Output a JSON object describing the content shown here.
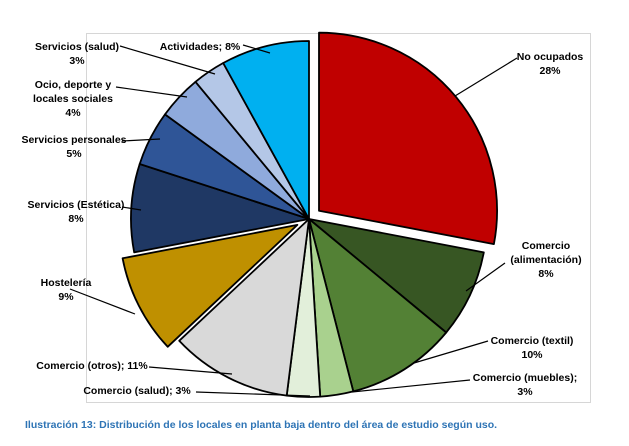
{
  "figure": {
    "caption": "Ilustración 13: Distribución de los locales en planta baja dentro del área de estudio según uso.",
    "caption_color": "#2E74B5",
    "plot_border_color": "#D6D6D6"
  },
  "chart_data": {
    "type": "pie",
    "title": "Distribución de los locales en planta baja dentro del área de estudio según uso",
    "units": "%",
    "direction": "clockwise",
    "start_angle_deg": 0,
    "total": 100,
    "legend": "none",
    "slices": [
      {
        "label": "No ocupados",
        "value": 28,
        "color": "#C00000",
        "exploded": true,
        "label_lines": [
          "No ocupados",
          "28%"
        ]
      },
      {
        "label": "Comercio (alimentación)",
        "value": 8,
        "color": "#375623",
        "exploded": false,
        "label_lines": [
          "Comercio",
          "(alimentación)",
          "8%"
        ]
      },
      {
        "label": "Comercio (textil)",
        "value": 10,
        "color": "#538135",
        "exploded": false,
        "label_lines": [
          "Comercio (textil)",
          "10%"
        ]
      },
      {
        "label": "Comercio (muebles)",
        "value": 3,
        "color": "#A9D18E",
        "exploded": false,
        "label_lines": [
          "Comercio (muebles);",
          "3%"
        ]
      },
      {
        "label": "Comercio (salud)",
        "value": 3,
        "color": "#E2EFDA",
        "exploded": false,
        "label_lines": [
          "Comercio (salud); 3%"
        ]
      },
      {
        "label": "Comercio (otros)",
        "value": 11,
        "color": "#D9D9D9",
        "exploded": false,
        "label_lines": [
          "Comercio (otros); 11%"
        ]
      },
      {
        "label": "Hostelería",
        "value": 9,
        "color": "#BF9000",
        "exploded": true,
        "label_lines": [
          "Hostelería",
          "9%"
        ]
      },
      {
        "label": "Servicios (Estética)",
        "value": 8,
        "color": "#1F3864",
        "exploded": false,
        "label_lines": [
          "Servicios (Estética)",
          "8%"
        ]
      },
      {
        "label": "Servicios personales",
        "value": 5,
        "color": "#2F5597",
        "exploded": false,
        "label_lines": [
          "Servicios personales",
          "5%"
        ]
      },
      {
        "label": "Ocio, deporte y locales sociales",
        "value": 4,
        "color": "#8FAADC",
        "exploded": false,
        "label_lines": [
          "Ocio, deporte y",
          "locales sociales",
          "4%"
        ]
      },
      {
        "label": "Servicios (salud)",
        "value": 3,
        "color": "#B4C7E7",
        "exploded": false,
        "label_lines": [
          "Servicios (salud)",
          "3%"
        ]
      },
      {
        "label": "Actividades",
        "value": 8,
        "color": "#00B0F0",
        "exploded": false,
        "label_lines": [
          "Actividades; 8%"
        ]
      }
    ]
  }
}
